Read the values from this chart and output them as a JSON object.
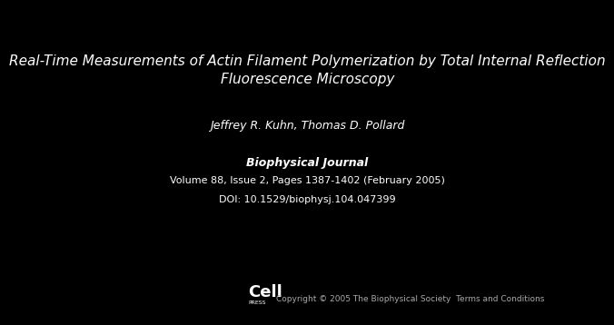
{
  "background_color": "#000000",
  "text_color": "#ffffff",
  "title_line1": "Real-Time Measurements of Actin Filament Polymerization by Total Internal Reflection",
  "title_line2": "Fluorescence Microscopy",
  "authors": "Jeffrey R. Kuhn, Thomas D. Pollard",
  "journal_name": "Biophysical Journal",
  "journal_details": "Volume 88, Issue 2, Pages 1387-1402 (February 2005)",
  "doi": "DOI: 10.1529/biophysj.104.047399",
  "copyright": "Copyright © 2005 The Biophysical Society  Terms and Conditions",
  "title_fontsize": 11,
  "authors_fontsize": 9,
  "journal_name_fontsize": 9,
  "journal_details_fontsize": 8,
  "copyright_fontsize": 6.5,
  "cell_fontsize": 13,
  "press_fontsize": 4.5
}
